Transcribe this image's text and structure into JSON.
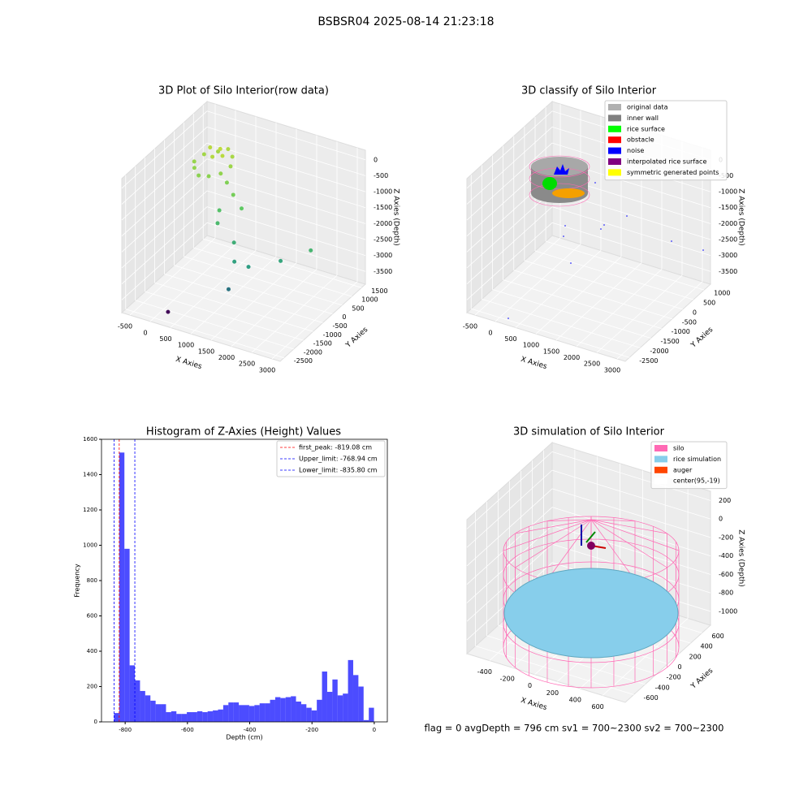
{
  "title": "BSBSR04 2025-08-14 21:23:18",
  "footer": "flag = 0     avgDepth = 796 cm  sv1 = 700~2300  sv2 = 700~2300",
  "chart_data": [
    {
      "type": "scatter3d",
      "title": "3D Plot of Silo Interior(row data)",
      "x_label": "X Axies",
      "y_label": "Y Axies",
      "z_label": "Z Axies (Depth)",
      "xlim": [
        -700,
        3200
      ],
      "ylim": [
        -2700,
        1700
      ],
      "zlim": [
        -3900,
        300
      ],
      "xticks": [
        -500,
        0,
        500,
        1000,
        1500,
        2000,
        2500,
        3000
      ],
      "yticks": [
        -2500,
        -2000,
        -1500,
        -1000,
        -500,
        0,
        500,
        1000,
        1500
      ],
      "zticks": [
        0,
        -500,
        -1000,
        -1500,
        -2000,
        -2500,
        -3000,
        -3500
      ],
      "colormap": [
        "#440154",
        "#21918c",
        "#5ec962",
        "#fde725"
      ],
      "x": [
        -300,
        -200,
        0,
        200,
        400,
        500,
        400,
        200,
        0,
        -200,
        -100,
        100,
        300,
        150,
        600,
        900,
        1200,
        800,
        1500,
        1300,
        1800,
        2400,
        3000,
        1500,
        200,
        700
      ],
      "y": [
        200,
        500,
        800,
        900,
        700,
        400,
        100,
        -100,
        -200,
        0,
        600,
        300,
        400,
        600,
        0,
        -300,
        -500,
        -900,
        -1500,
        -1100,
        -1400,
        -1000,
        -700,
        -1800,
        -2200,
        -600
      ],
      "z": [
        -600,
        -500,
        -500,
        -400,
        -450,
        -550,
        -650,
        -700,
        -700,
        -650,
        -300,
        -350,
        -300,
        -250,
        -800,
        -900,
        -1100,
        -1500,
        -2100,
        -1800,
        -2200,
        -2000,
        -1600,
        -2800,
        -3800,
        -1300
      ]
    },
    {
      "type": "scatter3d",
      "title": "3D classify of Silo Interior",
      "x_label": "X Axies",
      "y_label": "Y Axies",
      "z_label": "Z Axies (Depth)",
      "xlim": [
        -700,
        3200
      ],
      "ylim": [
        -2700,
        1300
      ],
      "zlim": [
        -3900,
        300
      ],
      "xticks": [
        -500,
        0,
        500,
        1000,
        1500,
        2000,
        2500,
        3000
      ],
      "yticks": [
        -2500,
        -2000,
        -1500,
        -1000,
        -500,
        0,
        500,
        1000
      ],
      "zticks": [
        0,
        -500,
        -1000,
        -1500,
        -2000,
        -2500,
        -3000,
        -3500
      ],
      "legend": [
        {
          "name": "original data",
          "color": "#b0b0b0"
        },
        {
          "name": "inner wall",
          "color": "#808080"
        },
        {
          "name": "rice surface",
          "color": "#00ff00"
        },
        {
          "name": "obstacle",
          "color": "#ff0000"
        },
        {
          "name": "noise",
          "color": "#0000ff"
        },
        {
          "name": "interpolated rice surface",
          "color": "#800080"
        },
        {
          "name": "symmetric generated points",
          "color": "#ffff00"
        }
      ]
    },
    {
      "type": "histogram",
      "title": "Histogram of Z-Axies (Height) Values",
      "x_label": "Depth (cm)",
      "y_label": "Frequency",
      "color": "#0000ff",
      "alpha": 0.7,
      "xlim": [
        -876,
        42
      ],
      "ylim": [
        0,
        1600
      ],
      "xticks": [
        -800,
        -600,
        -400,
        -200,
        0
      ],
      "yticks": [
        0,
        200,
        400,
        600,
        800,
        1000,
        1200,
        1400,
        1600
      ],
      "bins": [
        -835.8,
        -819.1,
        -802.4,
        -785.7,
        -769.0,
        -752.3,
        -735.6,
        -718.9,
        -702.2,
        -685.5,
        -668.8,
        -652.1,
        -635.4,
        -618.7,
        -602.0,
        -585.3,
        -568.6,
        -551.9,
        -535.2,
        -518.5,
        -501.8,
        -485.1,
        -468.4,
        -451.7,
        -435.0,
        -418.3,
        -401.6,
        -384.9,
        -368.2,
        -351.5,
        -334.8,
        -318.1,
        -301.4,
        -284.7,
        -268.0,
        -251.3,
        -234.6,
        -217.9,
        -201.2,
        -184.5,
        -167.8,
        -151.1,
        -134.4,
        -117.7,
        -101.0,
        -84.3,
        -67.6,
        -50.9,
        -34.2,
        -17.5,
        -0.8
      ],
      "counts": [
        50,
        1525,
        980,
        320,
        235,
        175,
        150,
        120,
        100,
        100,
        55,
        60,
        45,
        45,
        55,
        55,
        60,
        55,
        60,
        65,
        70,
        95,
        110,
        110,
        95,
        95,
        90,
        95,
        105,
        105,
        125,
        140,
        135,
        140,
        145,
        115,
        100,
        80,
        65,
        125,
        285,
        170,
        240,
        150,
        160,
        350,
        265,
        200,
        10,
        80
      ],
      "lines": [
        {
          "value": -819.08,
          "label": "first_peak: -819.08 cm",
          "color": "#ff0000"
        },
        {
          "value": -768.94,
          "label": "Upper_limit: -768.94 cm",
          "color": "#0000ff"
        },
        {
          "value": -835.8,
          "label": "Lower_limit: -835.80 cm",
          "color": "#0000ff"
        }
      ]
    },
    {
      "type": "scatter3d",
      "title": "3D simulation of Silo Interior",
      "x_label": "X Axies",
      "y_label": "Y Axies",
      "z_label": "Z Axies (Depth)",
      "xlim": [
        -600,
        800
      ],
      "ylim": [
        -750,
        750
      ],
      "zlim": [
        -1150,
        300
      ],
      "xticks": [
        -400,
        -200,
        0,
        200,
        400,
        600
      ],
      "yticks": [
        -600,
        -400,
        -200,
        0,
        200,
        400,
        600
      ],
      "zticks": [
        200,
        0,
        -200,
        -400,
        -600,
        -800,
        -1000
      ],
      "legend": [
        {
          "name": "silo",
          "color": "#ff69b4"
        },
        {
          "name": "rice simulation",
          "color": "#87ceeb"
        },
        {
          "name": "auger",
          "color": "#ff4500"
        },
        {
          "name": "center(95,-19)",
          "color": "#ffffff"
        }
      ]
    }
  ]
}
